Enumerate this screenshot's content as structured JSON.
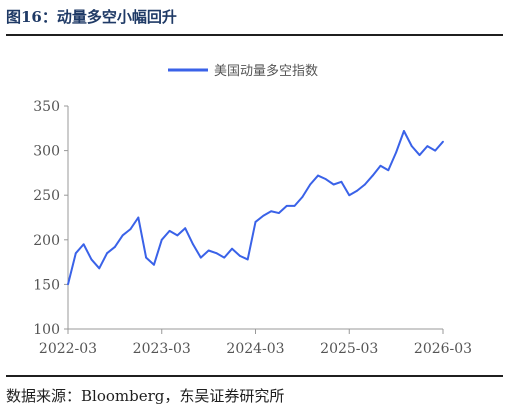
{
  "caption": "图16：动量多空小幅回升",
  "source": "数据来源：Bloomberg，东吴证券研究所",
  "colors": {
    "series": "#3a62e8",
    "axis": "#999999",
    "tick_text": "#555555",
    "caption": "#1f3a66"
  },
  "chart_data": {
    "type": "line",
    "title": "",
    "xlabel": "",
    "ylabel": "",
    "ylim": [
      100,
      350
    ],
    "yticks": [
      "100",
      "150",
      "200",
      "250",
      "300",
      "350"
    ],
    "xticks": [
      "2022-03",
      "2023-03",
      "2024-03",
      "2025-03",
      "2026-03"
    ],
    "xlim": [
      "2022-03",
      "2026-03"
    ],
    "grid": false,
    "legend_position": "top-center",
    "series": [
      {
        "name": "美国动量多空指数",
        "color": "#3a62e8",
        "x": [
          "2022-03",
          "2022-04",
          "2022-05",
          "2022-06",
          "2022-07",
          "2022-08",
          "2022-09",
          "2022-10",
          "2022-11",
          "2022-12",
          "2023-01",
          "2023-02",
          "2023-03",
          "2023-04",
          "2023-05",
          "2023-06",
          "2023-07",
          "2023-08",
          "2023-09",
          "2023-10",
          "2023-11",
          "2023-12",
          "2024-01",
          "2024-02",
          "2024-03",
          "2024-04",
          "2024-05",
          "2024-06",
          "2024-07",
          "2024-08",
          "2024-09",
          "2024-10",
          "2024-11",
          "2024-12",
          "2025-01",
          "2025-02",
          "2025-03",
          "2025-04",
          "2025-05",
          "2025-06",
          "2025-07",
          "2025-08",
          "2025-09",
          "2025-10",
          "2025-11",
          "2025-12",
          "2026-01",
          "2026-02",
          "2026-03"
        ],
        "values": [
          150,
          185,
          195,
          178,
          168,
          185,
          192,
          205,
          212,
          225,
          180,
          172,
          200,
          210,
          205,
          213,
          195,
          180,
          188,
          185,
          180,
          190,
          182,
          178,
          220,
          227,
          232,
          230,
          238,
          238,
          248,
          262,
          272,
          268,
          262,
          265,
          250,
          255,
          262,
          272,
          283,
          278,
          298,
          322,
          305,
          295,
          305,
          300,
          310
        ]
      }
    ]
  }
}
